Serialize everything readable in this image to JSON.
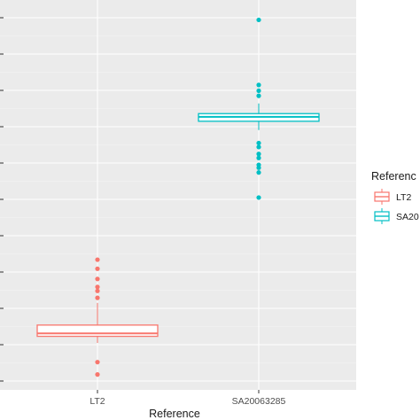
{
  "chart_data": {
    "type": "box",
    "title": "",
    "xlabel": "Reference",
    "ylabel": "",
    "ylim": [
      0,
      100
    ],
    "grid": true,
    "legend": {
      "title": "Referenc",
      "position": "right"
    },
    "categories": [
      "LT2",
      "SA20063285"
    ],
    "series": [
      {
        "name": "LT2",
        "legend_label": "LT2",
        "color": "#F8766D",
        "q1": 12.3,
        "median": 13.1,
        "q3": 15.4,
        "whisker_low": 10.5,
        "whisker_high": 21.5,
        "outliers": [
          1.8,
          5.2,
          22.9,
          24.8,
          25.9,
          28.1,
          30.9,
          33.4
        ]
      },
      {
        "name": "SA20063285",
        "legend_label": "SA20",
        "color": "#00BFC4",
        "q1": 71.5,
        "median": 72.7,
        "q3": 73.6,
        "whisker_low": 69.1,
        "whisker_high": 76.4,
        "outliers": [
          50.5,
          57.4,
          58.7,
          59.5,
          61.4,
          62.5,
          64.4,
          65.5,
          78.5,
          79.9,
          81.5,
          99.4
        ]
      }
    ]
  }
}
